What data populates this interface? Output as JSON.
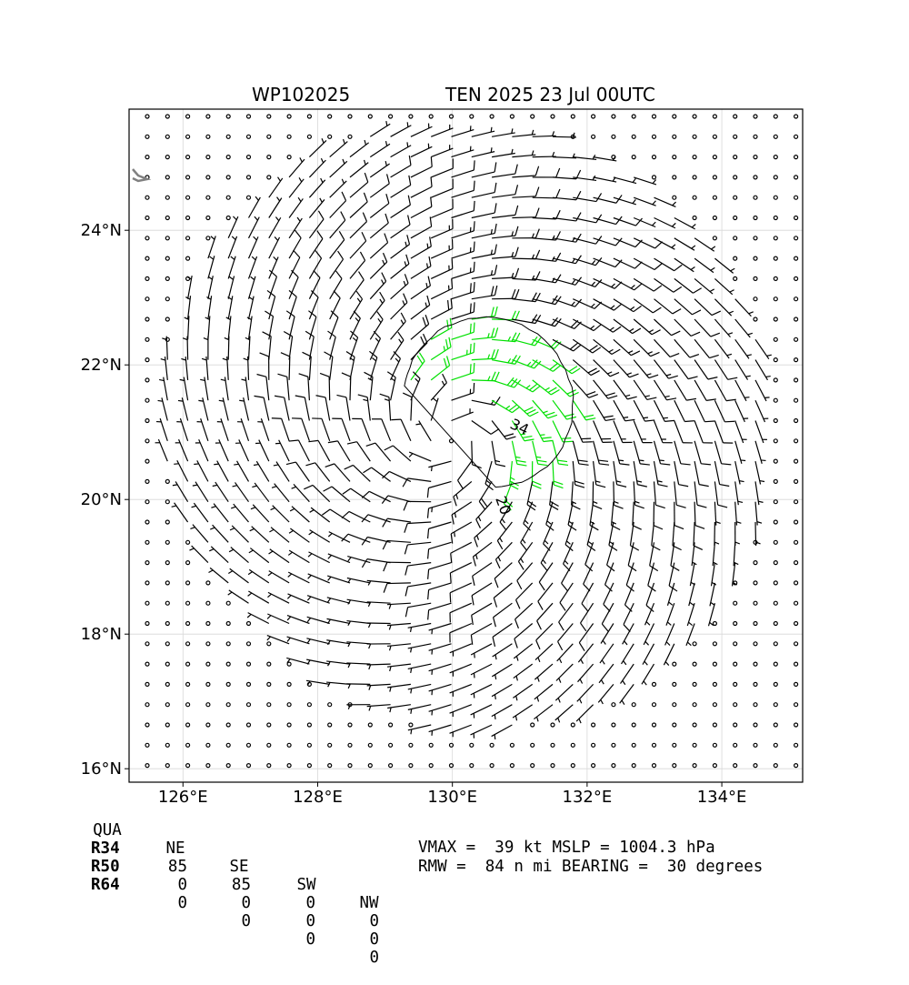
{
  "header": {
    "storm_id": "WP102025",
    "storm_info": "TEN 2025 23 Jul 00UTC"
  },
  "chart_data": {
    "type": "wind-barb map",
    "x_axis": {
      "ticks": [
        "126°E",
        "128°E",
        "130°E",
        "132°E",
        "134°E"
      ],
      "tick_values": [
        126,
        128,
        130,
        132,
        134
      ],
      "range": [
        125.2,
        135.2
      ]
    },
    "y_axis": {
      "ticks": [
        "16°N",
        "18°N",
        "20°N",
        "22°N",
        "24°N"
      ],
      "tick_values": [
        16,
        18,
        20,
        22,
        24
      ],
      "range": [
        15.8,
        25.8
      ]
    },
    "grid": true,
    "center": {
      "lon": 130.0,
      "lat": 20.95
    },
    "vmax_kt": 39,
    "contours": [
      {
        "label": "20",
        "value": 20
      },
      {
        "label": "34",
        "value": 34
      }
    ],
    "colors": {
      "calm_low": "#000000",
      "tropical_storm": "#00e000",
      "gale": "#e8b000",
      "contour": "#000000",
      "coast": "#808080"
    }
  },
  "table": {
    "headers": [
      "QUA",
      "NE",
      "SE",
      "SW",
      "NW"
    ],
    "rows": [
      {
        "label": "R34",
        "values": [
          "85",
          "85",
          "0",
          "0"
        ]
      },
      {
        "label": "R50",
        "values": [
          "0",
          "0",
          "0",
          "0"
        ]
      },
      {
        "label": "R64",
        "values": [
          "0",
          "0",
          "0",
          "0"
        ]
      }
    ]
  },
  "stats": {
    "line1": "VMAX =  39 kt MSLP = 1004.3 hPa",
    "line2": "RMW =  84 n mi BEARING =  30 degrees"
  }
}
